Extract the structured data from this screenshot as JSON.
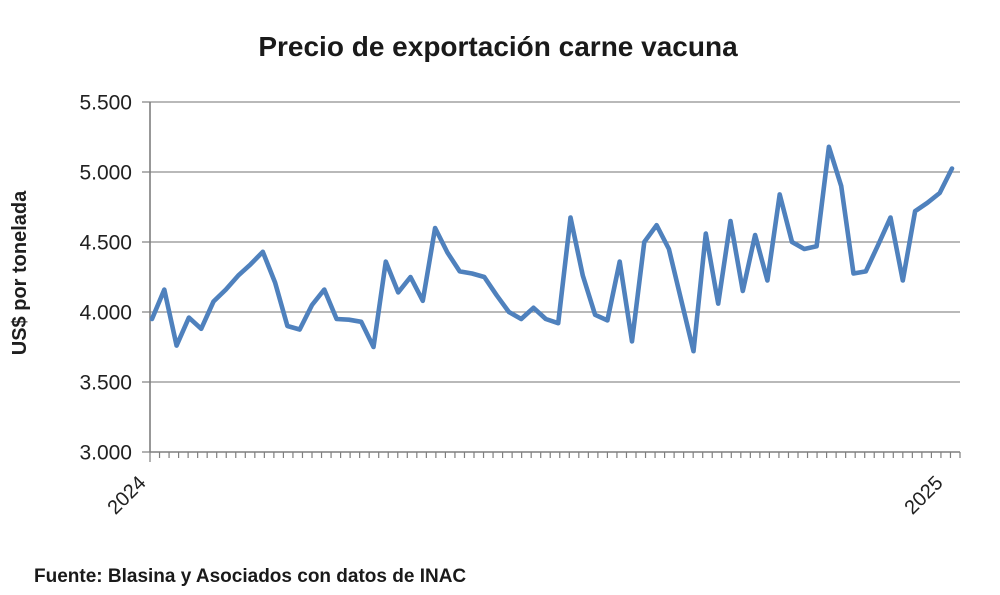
{
  "chart_data": {
    "type": "line",
    "title": "Precio de exportación carne vacuna",
    "ylabel": "US$ por tonelada",
    "xlabel": "",
    "source_note": "Fuente: Blasina y Asociados  con datos de INAC",
    "y_tick_labels": [
      "5.500",
      "5.000",
      "4.500",
      "4.000",
      "3.500",
      "3.000"
    ],
    "y_tick_values": [
      5500,
      5000,
      4500,
      4000,
      3500,
      3000
    ],
    "ylim": [
      3000,
      5500
    ],
    "x_tick_labels": [
      "2024",
      "2025"
    ],
    "x_label_positions": [
      0.0,
      0.95
    ],
    "x_minor_tick_count": 86,
    "grid": "horizontal gridlines on, no legend",
    "legend": "none",
    "series": [
      {
        "name": "Precio de exportación carne vacuna (US$ por tonelada)",
        "color": "#4F81BD",
        "values": [
          3950,
          4160,
          3760,
          3960,
          3880,
          4075,
          4160,
          4260,
          4340,
          4430,
          4210,
          3900,
          3875,
          4050,
          4160,
          3950,
          3945,
          3930,
          3750,
          4360,
          4140,
          4250,
          4080,
          4600,
          4425,
          4290,
          4275,
          4250,
          4120,
          4000,
          3950,
          4030,
          3950,
          3920,
          4675,
          4260,
          3980,
          3940,
          4360,
          3790,
          4500,
          4620,
          4450,
          4085,
          3720,
          4560,
          4060,
          4650,
          4150,
          4550,
          4225,
          4840,
          4500,
          4450,
          4470,
          5180,
          4900,
          4275,
          4290,
          4480,
          4675,
          4225,
          4720,
          4780,
          4850,
          5025
        ]
      }
    ]
  },
  "colors": {
    "line": "#4F81BD",
    "axis": "#7f7f7f",
    "gridline": "#8f8f8f",
    "text": "#1a1a1a",
    "background": "#ffffff"
  }
}
